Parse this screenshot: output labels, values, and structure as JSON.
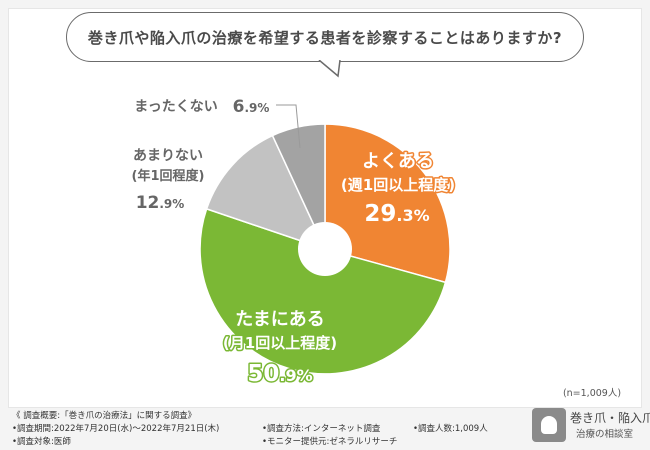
{
  "question": "巻き爪や陥入爪の治療を希望する患者を診察することはありますか?",
  "n_label": "(n=1,009人)",
  "colors": {
    "often": "#f08533",
    "sometimes": "#7bb835",
    "rarely": "#c2c2c2",
    "never": "#a3a3a3",
    "hole": "#ffffff"
  },
  "chart_data": {
    "type": "pie",
    "title": "巻き爪や陥入爪の治療を希望する患者を診察することはありますか?",
    "unit": "%",
    "slices": [
      {
        "key": "often",
        "label": "よくある",
        "sublabel": "(週1回以上程度)",
        "value": 29.3,
        "value_int": "29",
        "value_dec": ".3%"
      },
      {
        "key": "sometimes",
        "label": "たまにある",
        "sublabel": "(月1回以上程度)",
        "value": 50.9,
        "value_int": "50",
        "value_dec": ".9%"
      },
      {
        "key": "rarely",
        "label": "あまりない",
        "sublabel": "(年1回程度)",
        "value": 12.9,
        "value_int": "12",
        "value_dec": ".9%"
      },
      {
        "key": "never",
        "label": "まったくない",
        "sublabel": "",
        "value": 6.9,
        "value_int": "6",
        "value_dec": ".9%"
      }
    ]
  },
  "footer": {
    "overview": "《 調査概要:「巻き爪の治療法」に関する調査》",
    "period": "•調査期間:2022年7月20日(水)〜2022年7月21日(木)",
    "subjects": "•調査対象:医師",
    "method": "•調査方法:インターネット調査",
    "provider": "•モニター提供元:ゼネラルリサーチ",
    "respondents": "•調査人数:1,009人"
  },
  "logo": {
    "name": "巻き爪・陥入爪",
    "sub": "治療の相談室"
  }
}
